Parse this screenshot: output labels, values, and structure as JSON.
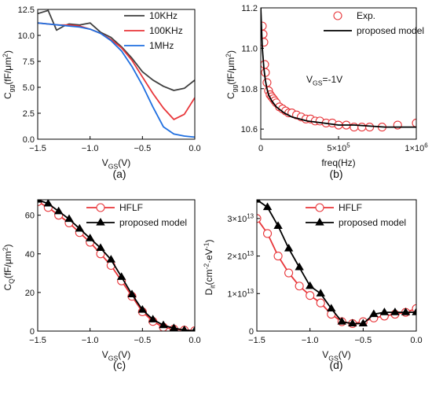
{
  "chart_data": [
    {
      "id": "a",
      "type": "line",
      "caption": "(a)",
      "xlabel": "V<sub>GS</sub>(V)",
      "ylabel": "C<sub>gg</sub>(fF/μm<sup>2</sup>)",
      "xlim": [
        -1.5,
        0.0
      ],
      "ylim": [
        0.0,
        12.5
      ],
      "xticks": [
        -1.5,
        -1.0,
        -0.5,
        0.0
      ],
      "xtick_labels": [
        "−1.5",
        "−1.0",
        "−0.5",
        "0.0"
      ],
      "yticks": [
        0.0,
        2.5,
        5.0,
        7.5,
        10.0,
        12.5
      ],
      "ytick_labels": [
        "0.0",
        "2.5",
        "5.0",
        "7.5",
        "10.0",
        "12.5"
      ],
      "legend_position": "top-right",
      "series": [
        {
          "name": "10KHz",
          "color": "#404040",
          "style": "line",
          "x": [
            -1.5,
            -1.4,
            -1.32,
            -1.25,
            -1.2,
            -1.1,
            -1.0,
            -0.9,
            -0.8,
            -0.7,
            -0.6,
            -0.5,
            -0.4,
            -0.3,
            -0.2,
            -0.1,
            0.0
          ],
          "y": [
            12.1,
            12.4,
            10.5,
            10.9,
            11.1,
            11.0,
            11.2,
            10.3,
            9.8,
            8.9,
            7.8,
            6.5,
            5.7,
            5.1,
            4.7,
            4.9,
            5.7
          ]
        },
        {
          "name": "100KHz",
          "color": "#e8363a",
          "style": "line",
          "x": [
            -1.5,
            -1.4,
            -1.3,
            -1.2,
            -1.1,
            -1.0,
            -0.9,
            -0.8,
            -0.7,
            -0.6,
            -0.5,
            -0.4,
            -0.3,
            -0.2,
            -0.1,
            0.0
          ],
          "y": [
            11.2,
            11.1,
            11.0,
            11.0,
            10.9,
            10.6,
            10.2,
            9.6,
            8.8,
            7.6,
            6.0,
            4.4,
            3.0,
            1.9,
            2.4,
            4.0
          ]
        },
        {
          "name": "1MHz",
          "color": "#1f6fe0",
          "style": "line",
          "x": [
            -1.5,
            -1.4,
            -1.3,
            -1.2,
            -1.1,
            -1.0,
            -0.9,
            -0.8,
            -0.7,
            -0.6,
            -0.5,
            -0.4,
            -0.3,
            -0.2,
            -0.1,
            0.0
          ],
          "y": [
            11.2,
            11.1,
            11.0,
            10.9,
            10.8,
            10.6,
            10.2,
            9.5,
            8.5,
            7.0,
            5.2,
            3.1,
            1.2,
            0.5,
            0.3,
            0.2
          ]
        }
      ]
    },
    {
      "id": "b",
      "type": "scatter",
      "caption": "(b)",
      "xlabel": "freq(Hz)",
      "ylabel": "C<sub>gg</sub>(fF/μm<sup>2</sup>)",
      "annotation": "V<sub>GS</sub>=-1V",
      "xlim": [
        0,
        1000000
      ],
      "ylim": [
        10.55,
        11.2
      ],
      "xticks": [
        0,
        500000,
        1000000
      ],
      "xtick_labels": [
        "0",
        "5×10<sup>5</sup>",
        "1×10<sup>6</sup>"
      ],
      "yticks": [
        10.6,
        10.8,
        11.0,
        11.2
      ],
      "ytick_labels": [
        "10.6",
        "10.8",
        "11.0",
        "11.2"
      ],
      "legend_position": "top-right",
      "series": [
        {
          "name": "Exp.",
          "color": "#e8363a",
          "style": "open-circle",
          "x": [
            10000,
            15000,
            20000,
            25000,
            30000,
            40000,
            50000,
            60000,
            70000,
            80000,
            90000,
            100000,
            120000,
            140000,
            160000,
            180000,
            200000,
            230000,
            260000,
            290000,
            320000,
            350000,
            380000,
            420000,
            460000,
            500000,
            550000,
            600000,
            650000,
            700000,
            780000,
            880000,
            1000000
          ],
          "y": [
            11.11,
            11.07,
            11.03,
            10.92,
            10.88,
            10.83,
            10.79,
            10.77,
            10.76,
            10.75,
            10.74,
            10.73,
            10.71,
            10.7,
            10.69,
            10.68,
            10.68,
            10.67,
            10.66,
            10.65,
            10.65,
            10.64,
            10.64,
            10.63,
            10.63,
            10.62,
            10.62,
            10.61,
            10.61,
            10.61,
            10.61,
            10.62,
            10.63
          ]
        },
        {
          "name": "proposed model",
          "color": "#000000",
          "style": "line",
          "x": [
            0,
            10000,
            20000,
            30000,
            40000,
            50000,
            70000,
            100000,
            150000,
            200000,
            300000,
            400000,
            500000,
            600000,
            800000,
            1000000
          ],
          "y": [
            11.2,
            11.0,
            10.9,
            10.84,
            10.8,
            10.77,
            10.74,
            10.71,
            10.68,
            10.66,
            10.64,
            10.63,
            10.62,
            10.62,
            10.61,
            10.61
          ]
        }
      ]
    },
    {
      "id": "c",
      "type": "line",
      "caption": "(c)",
      "xlabel": "V<sub>GS</sub>(V)",
      "ylabel": "C<sub>Q</sub>(fF/μm<sup>2</sup>)",
      "xlim": [
        -1.5,
        0.0
      ],
      "ylim": [
        0,
        68
      ],
      "xticks": [
        -1.5,
        -1.0,
        -0.5,
        0.0
      ],
      "xtick_labels": [
        "−1.5",
        "−1.0",
        "−0.5",
        "0.0"
      ],
      "yticks": [
        0,
        20,
        40,
        60
      ],
      "ytick_labels": [
        "0",
        "20",
        "40",
        "60"
      ],
      "legend_position": "top-right",
      "series": [
        {
          "name": "HFLF",
          "color": "#e8363a",
          "style": "line-open-circle",
          "x": [
            -1.5,
            -1.4,
            -1.3,
            -1.2,
            -1.1,
            -1.0,
            -0.9,
            -0.8,
            -0.7,
            -0.6,
            -0.5,
            -0.4,
            -0.3,
            -0.2,
            -0.1,
            0.0
          ],
          "y": [
            67,
            64,
            60,
            56,
            51,
            46,
            40,
            34,
            26,
            18,
            10,
            5,
            2,
            1,
            0.5,
            0.2
          ]
        },
        {
          "name": "proposed model",
          "color": "#000000",
          "style": "line-filled-triangle",
          "x": [
            -1.5,
            -1.4,
            -1.3,
            -1.2,
            -1.1,
            -1.0,
            -0.9,
            -0.8,
            -0.7,
            -0.6,
            -0.5,
            -0.4,
            -0.3,
            -0.2,
            -0.1,
            0.0
          ],
          "y": [
            68,
            66,
            62,
            58,
            53,
            48,
            43,
            37,
            28,
            19,
            11,
            6,
            3,
            1.5,
            0.5,
            0.2
          ]
        }
      ]
    },
    {
      "id": "d",
      "type": "line",
      "caption": "(d)",
      "xlabel": "V<sub>GS</sub>(V)",
      "ylabel": "D<sub>it</sub>(cm<sup>-2</sup>·eV<sup>-1</sup>)",
      "xlim": [
        -1.5,
        0.0
      ],
      "ylim": [
        0,
        35000000000000.0
      ],
      "xticks": [
        -1.5,
        -1.0,
        -0.5,
        0.0
      ],
      "xtick_labels": [
        "−1.5",
        "−1.0",
        "−0.5",
        "0.0"
      ],
      "yticks": [
        0,
        10000000000000.0,
        20000000000000.0,
        30000000000000.0
      ],
      "ytick_labels": [
        "0",
        "1×10<sup>13</sup>",
        "2×10<sup>13</sup>",
        "3×10<sup>13</sup>"
      ],
      "legend_position": "top-right",
      "series": [
        {
          "name": "HFLF",
          "color": "#e8363a",
          "style": "line-open-circle",
          "x": [
            -1.5,
            -1.4,
            -1.3,
            -1.2,
            -1.1,
            -1.0,
            -0.9,
            -0.8,
            -0.7,
            -0.6,
            -0.5,
            -0.4,
            -0.3,
            -0.2,
            -0.1,
            0.0
          ],
          "y": [
            30000000000000.0,
            26000000000000.0,
            20000000000000.0,
            15500000000000.0,
            12000000000000.0,
            9500000000000.0,
            7500000000000.0,
            4500000000000.0,
            2500000000000.0,
            2000000000000.0,
            2500000000000.0,
            3500000000000.0,
            4000000000000.0,
            4500000000000.0,
            5000000000000.0,
            6000000000000.0
          ]
        },
        {
          "name": "proposed model",
          "color": "#000000",
          "style": "line-filled-triangle",
          "x": [
            -1.5,
            -1.4,
            -1.3,
            -1.2,
            -1.1,
            -1.0,
            -0.9,
            -0.8,
            -0.7,
            -0.6,
            -0.5,
            -0.4,
            -0.3,
            -0.2,
            -0.1,
            0.0
          ],
          "y": [
            35000000000000.0,
            33000000000000.0,
            28000000000000.0,
            22000000000000.0,
            17000000000000.0,
            12000000000000.0,
            10000000000000.0,
            6000000000000.0,
            2500000000000.0,
            2000000000000.0,
            2000000000000.0,
            4500000000000.0,
            5000000000000.0,
            5000000000000.0,
            5000000000000.0,
            5000000000000.0
          ]
        }
      ]
    }
  ]
}
